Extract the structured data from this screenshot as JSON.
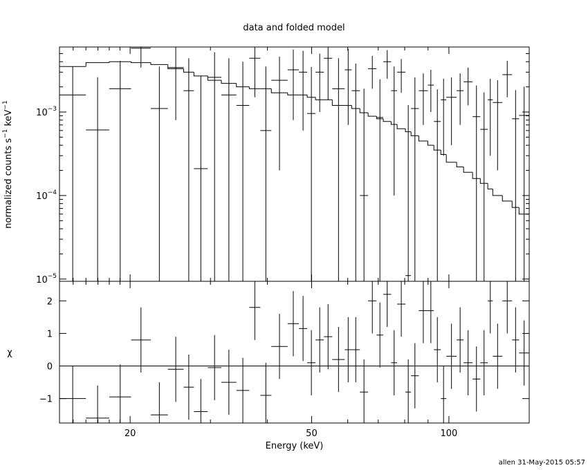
{
  "title": "data and folded model",
  "footer": "allen 31-May-2015 05:57",
  "chart_data": [
    {
      "type": "errorbar",
      "ylabel": [
        "normalized counts s",
        "−1",
        " keV",
        "−1"
      ],
      "log_y": true,
      "log_x": true,
      "xlim": [
        14,
        150
      ],
      "ylim": [
        9.4e-06,
        0.006
      ],
      "xticks": [
        20,
        50,
        100
      ],
      "xminorticks": [
        15,
        16,
        17,
        18,
        19,
        30,
        40,
        60,
        70,
        80,
        90
      ],
      "yticks": [
        {
          "value": 1e-05,
          "label": "10",
          "exponent": "−5"
        },
        {
          "value": 0.0001,
          "label": "10",
          "exponent": "−4"
        },
        {
          "value": 0.001,
          "label": "10",
          "exponent": "−3"
        }
      ],
      "yminorticks": [
        2e-05,
        3e-05,
        4e-05,
        5e-05,
        6e-05,
        7e-05,
        8e-05,
        9e-05,
        0.0002,
        0.0003,
        0.0004,
        0.0005,
        0.0006,
        0.0007,
        0.0008,
        0.0009,
        0.002,
        0.003,
        0.004,
        0.005
      ],
      "bin_edges": [
        14,
        16.0,
        18.0,
        20.1,
        22.2,
        24.2,
        26.2,
        27.6,
        29.6,
        31.7,
        34.2,
        36.5,
        38.6,
        40.8,
        44.3,
        46.9,
        48.9,
        51.0,
        53.2,
        55.5,
        59.1,
        61.2,
        63.8,
        66.5,
        69.4,
        71.8,
        74.7,
        77.0,
        80.3,
        82.6,
        85.9,
        89.9,
        92.7,
        96.0,
        98.7,
        104.0,
        107.7,
        112.7,
        117.2,
        121.7,
        124.8,
        131.0,
        137.6,
        142.5,
        150
      ],
      "data_color": "#000000",
      "model_color": "#000000",
      "values": [
        0.0016,
        0.00061,
        0.0019,
        0.0058,
        0.0011,
        0.0034,
        0.0018,
        0.00021,
        0.0026,
        0.0016,
        0.0012,
        0.0044,
        0.0006,
        0.0024,
        0.0032,
        0.003,
        0.00096,
        0.003,
        0.0044,
        0.0019,
        0.0032,
        0.0018,
        0.0001,
        0.0033,
        0.00086,
        0.004,
        0.0018,
        0.003,
        1.1e-05,
        0.0011,
        0.0018,
        0.0021,
        0.00077,
        0.0014,
        0.0015,
        0.0018,
        0.0023,
        0.00088,
        0.00062,
        0.0014,
        0.0013,
        0.0028,
        0.00083,
        0.00091
      ],
      "errors": [
        0.0019,
        0.002,
        0.0022,
        0.0024,
        0.0024,
        0.0026,
        0.0026,
        0.0025,
        0.0026,
        0.0028,
        0.0028,
        0.0029,
        0.0029,
        0.0022,
        0.0024,
        0.0024,
        0.0025,
        0.002,
        0.003,
        0.0025,
        0.0025,
        0.002,
        0.0018,
        0.0014,
        0.0016,
        0.0015,
        0.0017,
        0.0013,
        0.0012,
        0.0015,
        0.0011,
        0.0011,
        0.0011,
        0.0011,
        0.0011,
        0.0011,
        0.0011,
        0.0012,
        0.0011,
        0.0011,
        0.0011,
        0.0013,
        0.001,
        0.0011
      ],
      "model": [
        0.0035,
        0.0039,
        0.004,
        0.0039,
        0.0037,
        0.0033,
        0.003,
        0.0027,
        0.0024,
        0.0022,
        0.002,
        0.0019,
        0.0019,
        0.0017,
        0.0016,
        0.0016,
        0.0015,
        0.0014,
        0.0014,
        0.0012,
        0.0012,
        0.0011,
        0.00098,
        0.00089,
        0.00083,
        0.00077,
        0.00071,
        0.00063,
        0.00058,
        0.00052,
        0.00045,
        0.0004,
        0.00035,
        0.00031,
        0.00025,
        0.00022,
        0.00019,
        0.00016,
        0.00014,
        0.00012,
        0.0001,
        8.6e-05,
        7.2e-05,
        6e-05
      ]
    },
    {
      "type": "residual",
      "ylabel": "χ",
      "xlabel": "Energy (keV)",
      "xlim": [
        14,
        150
      ],
      "ylim": [
        -1.75,
        2.6
      ],
      "xticks": [
        20,
        50,
        100
      ],
      "xminorticks": [
        15,
        16,
        17,
        18,
        19,
        30,
        40,
        60,
        70,
        80,
        90
      ],
      "yticks": [
        {
          "value": -1,
          "label": "−1"
        },
        0,
        1,
        2
      ],
      "zero_line": 0,
      "zero_line_color": "#00e000",
      "data_color": "#000000",
      "values": [
        -1.0,
        -1.6,
        -0.95,
        0.8,
        -1.5,
        -0.1,
        -0.65,
        -1.4,
        -0.05,
        -0.5,
        -0.75,
        1.8,
        -0.9,
        0.6,
        1.3,
        1.15,
        0.1,
        0.8,
        0.9,
        0.2,
        0.5,
        0.5,
        -0.8,
        2.0,
        0.95,
        2.2,
        0.1,
        1.9,
        -0.8,
        -0.3,
        1.7,
        1.7,
        0.5,
        -1.0,
        0.3,
        0.8,
        0.1,
        -0.4,
        0.1,
        2.0,
        0.3,
        2.0,
        0.8,
        0.4
      ],
      "error": 1
    }
  ]
}
